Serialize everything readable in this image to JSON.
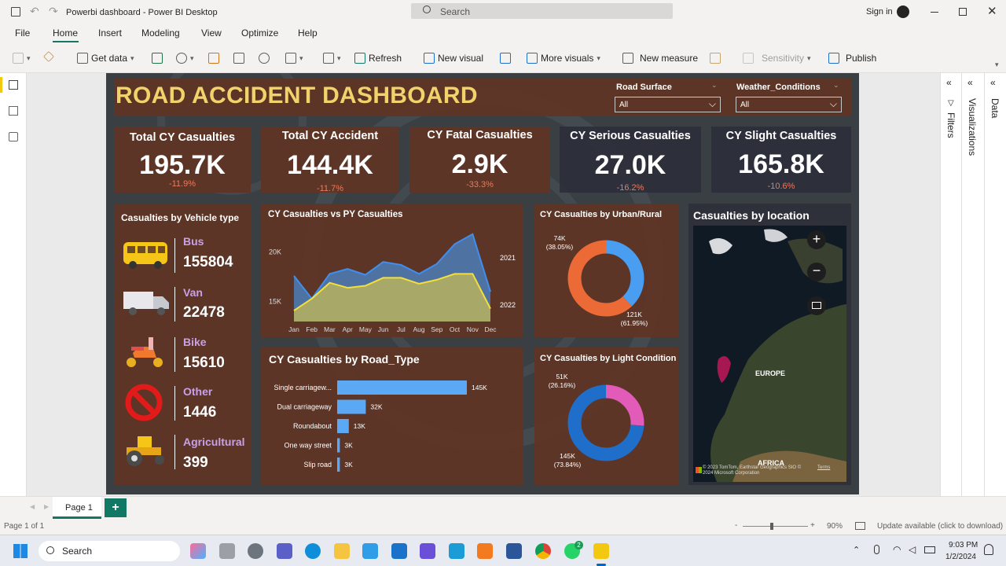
{
  "window": {
    "title": "Powerbi dashboard - Power BI Desktop",
    "search_placeholder": "Search",
    "signin": "Sign in"
  },
  "ribbon_tabs": [
    "File",
    "Home",
    "Insert",
    "Modeling",
    "View",
    "Optimize",
    "Help"
  ],
  "toolbar": {
    "get_data": "Get data",
    "refresh": "Refresh",
    "new_visual": "New visual",
    "more_visuals": "More visuals",
    "new_measure": "New measure",
    "sensitivity": "Sensitivity",
    "publish": "Publish"
  },
  "dashboard": {
    "title": "ROAD ACCIDENT DASHBOARD",
    "slicers": [
      {
        "label": "Road Surface",
        "value": "All"
      },
      {
        "label": "Weather_Conditions",
        "value": "All"
      }
    ],
    "kpis": [
      {
        "title": "Total CY Casualties",
        "value": "195.7K",
        "delta": "-11.9%"
      },
      {
        "title": "Total CY Accident",
        "value": "144.4K",
        "delta": "-11.7%"
      },
      {
        "title": "CY Fatal Casualties",
        "value": "2.9K",
        "delta": "-33.3%"
      },
      {
        "title": "CY Serious Casualties",
        "value": "27.0K",
        "delta": "-16.2%"
      },
      {
        "title": "CY Slight Casualties",
        "value": "165.8K",
        "delta": "-10.6%"
      }
    ],
    "vehicle_panel": {
      "title": "Casualties by Vehicle type",
      "items": [
        {
          "name": "Bus",
          "value": "155804",
          "icon": "bus-icon"
        },
        {
          "name": "Van",
          "value": "22478",
          "icon": "truck-icon"
        },
        {
          "name": "Bike",
          "value": "15610",
          "icon": "scooter-icon"
        },
        {
          "name": "Other",
          "value": "1446",
          "icon": "prohibited-icon"
        },
        {
          "name": "Agricultural",
          "value": "399",
          "icon": "tractor-icon"
        }
      ]
    },
    "map": {
      "title": "Casualties by location",
      "label_europe": "EUROPE",
      "label_africa": "AFRICA",
      "attribution": "© 2023 TomTom, Earthstar Geographics SIO © 2024 Microsoft Corporation",
      "terms": "Terms"
    }
  },
  "chart_data": [
    {
      "type": "area",
      "title": "CY Casualties vs PY Casualties",
      "categories": [
        "Jan",
        "Feb",
        "Mar",
        "Apr",
        "May",
        "Jun",
        "Jul",
        "Aug",
        "Sep",
        "Oct",
        "Nov",
        "Dec"
      ],
      "yticks": [
        "20K",
        "15K"
      ],
      "ylim": [
        13000,
        22500
      ],
      "series": [
        {
          "name": "2021",
          "values": [
            17600,
            15300,
            17800,
            18300,
            17700,
            19000,
            18700,
            17800,
            18800,
            20800,
            21800,
            16000
          ],
          "color": "#4d79b0"
        },
        {
          "name": "2022",
          "values": [
            14100,
            15300,
            16900,
            16400,
            16600,
            17400,
            17400,
            16800,
            17200,
            17800,
            17800,
            14300
          ],
          "color": "#b9b35f"
        }
      ]
    },
    {
      "type": "pie",
      "title": "CY Casualties by Urban/Rural",
      "slices": [
        {
          "label": "74K",
          "pct": "(38.05%)",
          "value": 38.05,
          "color": "#4a9ef2"
        },
        {
          "label": "121K",
          "pct": "(61.95%)",
          "value": 61.95,
          "color": "#ec6a35"
        }
      ]
    },
    {
      "type": "bar",
      "title": "CY Casualties by Road_Type",
      "categories": [
        "Single carriagew...",
        "Dual carriageway",
        "Roundabout",
        "One way street",
        "Slip road"
      ],
      "values": [
        145000,
        32000,
        13000,
        3000,
        3000
      ],
      "labels": [
        "145K",
        "32K",
        "13K",
        "3K",
        "3K"
      ],
      "xlim": [
        0,
        145000
      ],
      "color": "#5ba8f5"
    },
    {
      "type": "pie",
      "title": "CY Casualties by Light Condition",
      "slices": [
        {
          "label": "51K",
          "pct": "(26.16%)",
          "value": 26.16,
          "color": "#e25bb8"
        },
        {
          "label": "145K",
          "pct": "(73.84%)",
          "value": 73.84,
          "color": "#1f6fca"
        }
      ]
    }
  ],
  "pages": {
    "current": "Page 1",
    "count": "Page 1 of 1"
  },
  "status": {
    "zoom": "90%",
    "update": "Update available (click to download)"
  },
  "panes": {
    "filters": "Filters",
    "visualizations": "Visualizations",
    "data": "Data"
  },
  "taskbar": {
    "search": "Search",
    "time": "9:03 PM",
    "date": "1/2/2024",
    "badge": "2"
  }
}
